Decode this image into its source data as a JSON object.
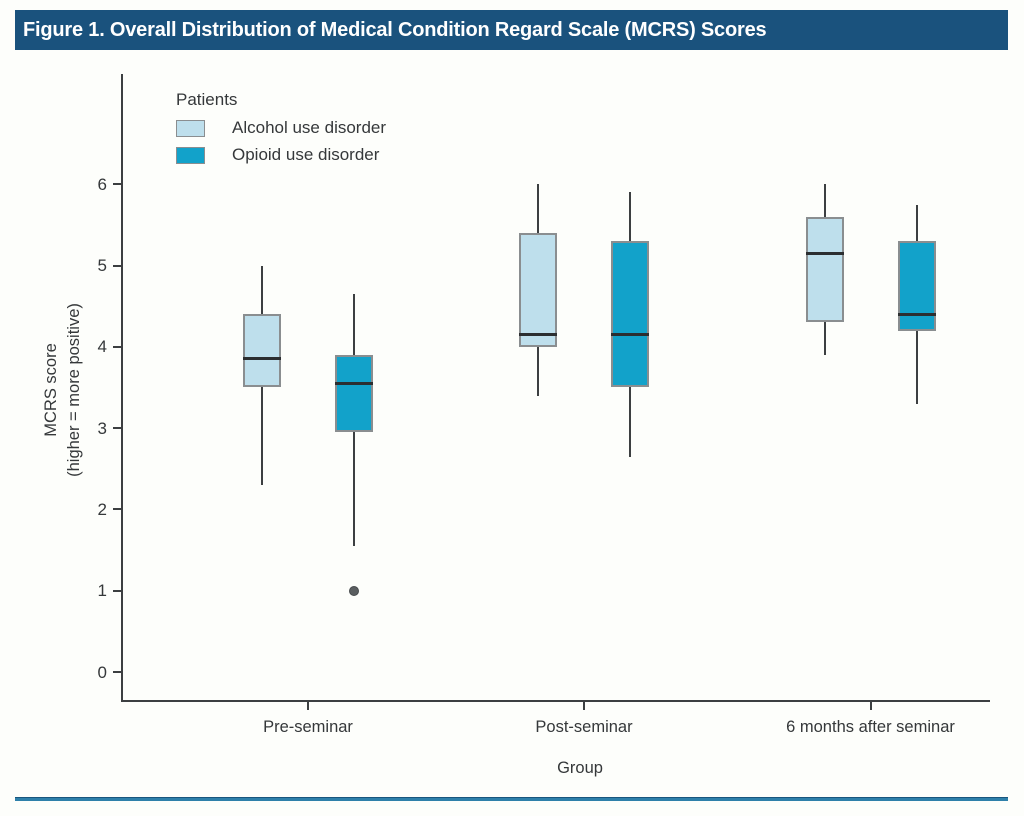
{
  "figure": {
    "title": "Figure 1. Overall Distribution of Medical Condition Regard Scale (MCRS) Scores"
  },
  "legend": {
    "title": "Patients",
    "items": [
      {
        "label": "Alcohol use disorder",
        "color": "#BEDFEC"
      },
      {
        "label": "Opioid use disorder",
        "color": "#12A2CA"
      }
    ]
  },
  "colors": {
    "banner_blue": "#1A527D",
    "bottom_rule_blue": "#2E80AA",
    "alcohol_fill": "#BEDFEC",
    "opioid_fill": "#12A2CA",
    "box_border_gray": "#8A8E90",
    "whisker_gray": "#3C3F41",
    "median_dark": "#2B2E30",
    "outlier_gray": "#5A5E60"
  },
  "chart_data": {
    "type": "boxplot",
    "title": "",
    "xlabel": "Group",
    "ylabel_line1": "MCRS score",
    "ylabel_line2": "(higher = more positive)",
    "categories": [
      "Pre-seminar",
      "Post-seminar",
      "6 months after seminar"
    ],
    "yticks": [
      0,
      1,
      2,
      3,
      4,
      5,
      6
    ],
    "ylim": [
      0,
      7.35
    ],
    "grid": false,
    "legend_position": "top-left",
    "series": [
      {
        "name": "Alcohol use disorder",
        "color": "#BEDFEC",
        "boxes": [
          {
            "category": "Pre-seminar",
            "whisker_low": 2.3,
            "q1": 3.5,
            "median": 3.85,
            "q3": 4.4,
            "whisker_high": 5.0,
            "outliers": []
          },
          {
            "category": "Post-seminar",
            "whisker_low": 3.4,
            "q1": 4.0,
            "median": 4.15,
            "q3": 5.4,
            "whisker_high": 6.0,
            "outliers": []
          },
          {
            "category": "6 months after seminar",
            "whisker_low": 3.9,
            "q1": 4.3,
            "median": 5.15,
            "q3": 5.6,
            "whisker_high": 6.0,
            "outliers": []
          }
        ]
      },
      {
        "name": "Opioid use disorder",
        "color": "#12A2CA",
        "boxes": [
          {
            "category": "Pre-seminar",
            "whisker_low": 1.55,
            "q1": 2.95,
            "median": 3.55,
            "q3": 3.9,
            "whisker_high": 4.65,
            "outliers": [
              1.0
            ]
          },
          {
            "category": "Post-seminar",
            "whisker_low": 2.65,
            "q1": 3.5,
            "median": 4.15,
            "q3": 5.3,
            "whisker_high": 5.9,
            "outliers": []
          },
          {
            "category": "6 months after seminar",
            "whisker_low": 3.3,
            "q1": 4.2,
            "median": 4.4,
            "q3": 5.3,
            "whisker_high": 5.75,
            "outliers": []
          }
        ]
      }
    ]
  }
}
